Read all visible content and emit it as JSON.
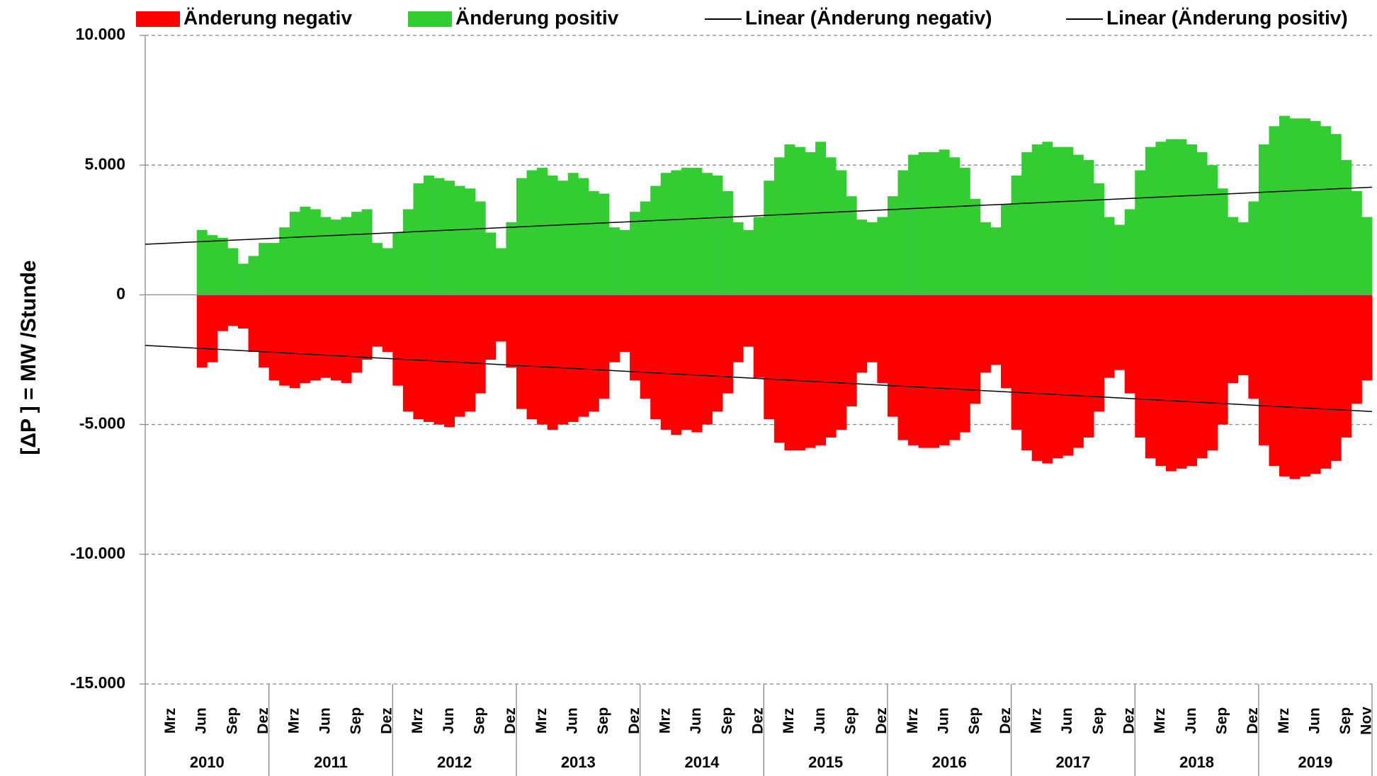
{
  "chart_data": {
    "type": "bar",
    "y_label": "[ΔP ]  =  MW /Stunde",
    "ylim": [
      -15000,
      10000
    ],
    "yticks": [
      {
        "value": 10000,
        "label": "10.000"
      },
      {
        "value": 5000,
        "label": "5.000"
      },
      0,
      {
        "value": -5000,
        "label": "-5.000"
      },
      {
        "value": -10000,
        "label": "-10.000"
      },
      {
        "value": -15000,
        "label": "-15.000"
      }
    ],
    "grid": true,
    "negative_tick_color": "#ff0000",
    "legend": "top",
    "groups": [
      {
        "label": "2010",
        "categories": [
          null,
          null,
          "Mrz",
          null,
          null,
          "Jun",
          null,
          null,
          "Sep",
          null,
          null,
          "Dez"
        ]
      },
      {
        "label": "2011",
        "categories": [
          null,
          null,
          "Mrz",
          null,
          null,
          "Jun",
          null,
          null,
          "Sep",
          null,
          null,
          "Dez"
        ]
      },
      {
        "label": "2012",
        "categories": [
          null,
          null,
          "Mrz",
          null,
          null,
          "Jun",
          null,
          null,
          "Sep",
          null,
          null,
          "Dez"
        ]
      },
      {
        "label": "2013",
        "categories": [
          null,
          null,
          "Mrz",
          null,
          null,
          "Jun",
          null,
          null,
          "Sep",
          null,
          null,
          "Dez"
        ]
      },
      {
        "label": "2014",
        "categories": [
          null,
          null,
          "Mrz",
          null,
          null,
          "Jun",
          null,
          null,
          "Sep",
          null,
          null,
          "Dez"
        ]
      },
      {
        "label": "2015",
        "categories": [
          null,
          null,
          "Mrz",
          null,
          null,
          "Jun",
          null,
          null,
          "Sep",
          null,
          null,
          "Dez"
        ]
      },
      {
        "label": "2016",
        "categories": [
          null,
          null,
          "Mrz",
          null,
          null,
          "Jun",
          null,
          null,
          "Sep",
          null,
          null,
          "Dez"
        ]
      },
      {
        "label": "2017",
        "categories": [
          null,
          null,
          "Mrz",
          null,
          null,
          "Jun",
          null,
          null,
          "Sep",
          null,
          null,
          "Dez"
        ]
      },
      {
        "label": "2018",
        "categories": [
          null,
          null,
          "Mrz",
          null,
          null,
          "Jun",
          null,
          null,
          "Sep",
          null,
          null,
          "Dez"
        ]
      },
      {
        "label": "2019",
        "categories": [
          null,
          null,
          "Mrz",
          null,
          null,
          "Jun",
          null,
          null,
          "Sep",
          null,
          "Nov"
        ]
      }
    ],
    "series": [
      {
        "name": "Änderung negativ",
        "color": "#ff0000",
        "values": [
          null,
          null,
          null,
          null,
          null,
          -2800,
          -2600,
          -1400,
          -1200,
          -1300,
          -2200,
          -2800,
          -3300,
          -3500,
          -3600,
          -3400,
          -3300,
          -3200,
          -3300,
          -3400,
          -3000,
          -2500,
          -2000,
          -2200,
          -3500,
          -4500,
          -4800,
          -4900,
          -5000,
          -5100,
          -4700,
          -4500,
          -3800,
          -2500,
          -1800,
          -2800,
          -4400,
          -4800,
          -5000,
          -5200,
          -5000,
          -4900,
          -4700,
          -4500,
          -4000,
          -2600,
          -2200,
          -3300,
          -4000,
          -4800,
          -5200,
          -5400,
          -5200,
          -5300,
          -5000,
          -4500,
          -3800,
          -2600,
          -2000,
          -3200,
          -4800,
          -5700,
          -6000,
          -6000,
          -5900,
          -5800,
          -5500,
          -5200,
          -4300,
          -3000,
          -2600,
          -3400,
          -4700,
          -5600,
          -5800,
          -5900,
          -5900,
          -5800,
          -5600,
          -5300,
          -4200,
          -3000,
          -2700,
          -3600,
          -5200,
          -6000,
          -6400,
          -6500,
          -6300,
          -6200,
          -5900,
          -5500,
          -4500,
          -3200,
          -2900,
          -3800,
          -5500,
          -6300,
          -6600,
          -6800,
          -6700,
          -6600,
          -6300,
          -6000,
          -5000,
          -3400,
          -3100,
          -4000,
          -5800,
          -6600,
          -7000,
          -7100,
          -7000,
          -6900,
          -6700,
          -6400,
          -5500,
          -4200,
          -3300
        ]
      },
      {
        "name": "Änderung positiv",
        "color": "#33cc33",
        "values": [
          null,
          null,
          null,
          null,
          null,
          2500,
          2300,
          2200,
          1800,
          1200,
          1500,
          2000,
          2000,
          2600,
          3200,
          3400,
          3300,
          3000,
          2900,
          3000,
          3200,
          3300,
          2000,
          1800,
          2400,
          3300,
          4300,
          4600,
          4500,
          4400,
          4200,
          4100,
          3600,
          2400,
          1800,
          2800,
          4500,
          4800,
          4900,
          4600,
          4400,
          4700,
          4500,
          4000,
          3900,
          2600,
          2500,
          3200,
          3600,
          4200,
          4700,
          4800,
          4900,
          4900,
          4700,
          4600,
          4000,
          2800,
          2500,
          3000,
          4400,
          5300,
          5800,
          5700,
          5500,
          5900,
          5300,
          4800,
          3800,
          2900,
          2800,
          3000,
          3800,
          4800,
          5400,
          5500,
          5500,
          5600,
          5300,
          4900,
          3700,
          2800,
          2600,
          3500,
          4600,
          5500,
          5800,
          5900,
          5700,
          5700,
          5400,
          5200,
          4300,
          3000,
          2700,
          3300,
          4800,
          5700,
          5900,
          6000,
          6000,
          5800,
          5500,
          5000,
          4100,
          3000,
          2800,
          3600,
          5800,
          6500,
          6900,
          6800,
          6800,
          6700,
          6500,
          6200,
          5200,
          4000,
          3000
        ]
      }
    ],
    "trendlines": [
      {
        "name": "Linear (Änderung negativ)",
        "color": "#000000",
        "from": -1950,
        "to": -4500
      },
      {
        "name": "Linear (Änderung positiv)",
        "color": "#000000",
        "from": 1950,
        "to": 4150
      }
    ]
  }
}
